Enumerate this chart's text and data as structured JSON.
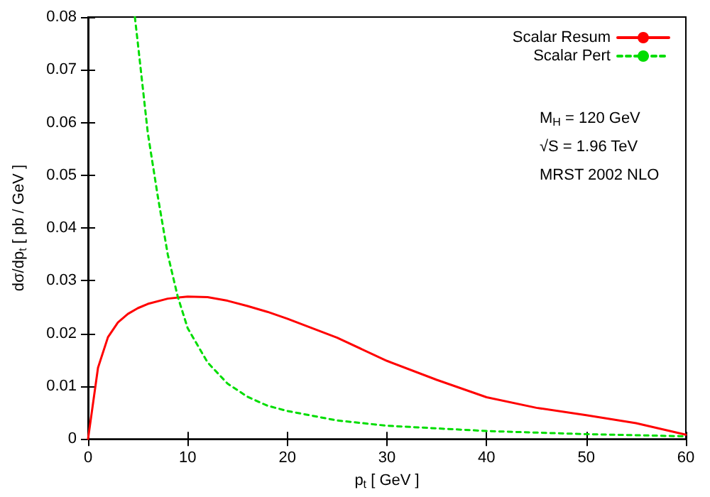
{
  "chart_data": {
    "type": "line",
    "xlabel": "p$_{t}$ [ GeV ]",
    "ylabel": "dσ/dp$_{t}$ [ pb / GeV ]",
    "xlim": [
      0,
      60
    ],
    "xticks": [
      0,
      10,
      20,
      30,
      40,
      50,
      60
    ],
    "ylim": [
      0,
      0.08
    ],
    "yticks": [
      0,
      0.01,
      0.02,
      0.03,
      0.04,
      0.05,
      0.06,
      0.07,
      0.08
    ],
    "grid": false,
    "legend": "top right",
    "marker": "none",
    "annotations": [
      "M$_{H}$ = 120 GeV",
      "√S = 1.96 TeV",
      "MRST 2002 NLO"
    ],
    "series": [
      {
        "name": "Scalar Resum",
        "color": "#ff0000",
        "line_style": "solid",
        "x": [
          0,
          1,
          2,
          3,
          4,
          5,
          6,
          8,
          10,
          12,
          14,
          16,
          18,
          20,
          25,
          30,
          35,
          40,
          45,
          50,
          55,
          60
        ],
        "values": [
          0,
          0.0135,
          0.0193,
          0.0221,
          0.0237,
          0.0248,
          0.0256,
          0.0266,
          0.027,
          0.0269,
          0.0262,
          0.0252,
          0.0241,
          0.0228,
          0.0192,
          0.0148,
          0.0112,
          0.0079,
          0.0059,
          0.0045,
          0.003,
          0.0008
        ]
      },
      {
        "name": "Scalar Pert",
        "color": "#00dd00",
        "line_style": "dashed",
        "x": [
          4.7,
          5,
          6,
          7,
          8,
          9,
          10,
          12,
          14,
          16,
          18,
          20,
          25,
          30,
          40,
          50,
          60
        ],
        "values": [
          0.08,
          0.075,
          0.058,
          0.046,
          0.035,
          0.027,
          0.021,
          0.0145,
          0.0105,
          0.008,
          0.0063,
          0.0053,
          0.0035,
          0.0025,
          0.0015,
          0.0009,
          0.0005
        ]
      }
    ]
  }
}
